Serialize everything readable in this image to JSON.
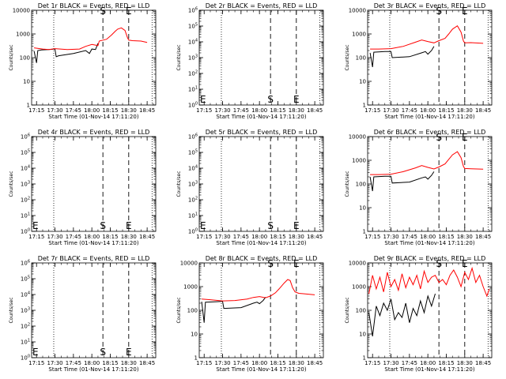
{
  "chart_data": [
    {
      "type": "line",
      "title": "Det 1r BLACK = Events, RED = LLD",
      "xlabel": "Start Time (01-Nov-14 17:11:20)",
      "ylabel": "Counts/sec",
      "yscale": "log",
      "ylim": [
        1,
        10000
      ],
      "xlim": [
        "17:11",
        "18:52"
      ],
      "x_ticks": [
        "17:15",
        "17:30",
        "17:45",
        "18:00",
        "18:15",
        "18:30",
        "18:45"
      ],
      "y_ticks": [
        "1",
        "10",
        "100",
        "1000",
        "10000"
      ],
      "markers": [
        {
          "label": "S",
          "x": "18:09"
        },
        {
          "label": "E",
          "x": "18:30"
        }
      ],
      "series": [
        {
          "color": "#ff0000",
          "x": [
            "17:13",
            "17:20",
            "17:25",
            "17:30",
            "17:40",
            "17:50",
            "17:55",
            "18:00",
            "18:05",
            "18:06",
            "18:09",
            "18:12",
            "18:16",
            "18:19",
            "18:21",
            "18:24",
            "18:27",
            "18:29",
            "18:30",
            "18:33",
            "18:40",
            "18:45"
          ],
          "values": [
            260,
            230,
            220,
            240,
            220,
            230,
            300,
            360,
            320,
            500,
            550,
            600,
            900,
            1300,
            1600,
            1800,
            1400,
            700,
            550,
            520,
            500,
            440
          ]
        },
        {
          "color": "#000000",
          "x": [
            "17:13",
            "17:15",
            "17:16",
            "17:19",
            "17:25",
            "17:30",
            "17:31",
            "17:33",
            "17:45",
            "17:55",
            "17:58",
            "18:00",
            "18:03",
            "18:05"
          ],
          "values": [
            190,
            60,
            200,
            210,
            220,
            230,
            110,
            120,
            150,
            200,
            150,
            230,
            220,
            400
          ]
        }
      ]
    },
    {
      "type": "line",
      "title": "Det 2r BLACK = Events, RED = LLD",
      "xlabel": "Start Time (01-Nov-14 17:11:20)",
      "ylabel": "Counts/sec",
      "yscale": "log",
      "ylim": [
        1,
        1000000
      ],
      "xlim": [
        "17:11",
        "18:52"
      ],
      "x_ticks": [
        "17:15",
        "17:30",
        "17:45",
        "18:00",
        "18:15",
        "18:30",
        "18:45"
      ],
      "y_ticks": [
        "10^0",
        "10^1",
        "10^2",
        "10^3",
        "10^4",
        "10^5",
        "10^6"
      ],
      "markers": [
        {
          "label": "S",
          "x": "18:09"
        },
        {
          "label": "E",
          "x": "18:30"
        }
      ],
      "series": []
    },
    {
      "type": "line",
      "title": "Det 3r BLACK = Events, RED = LLD",
      "xlabel": "Start Time (01-Nov-14 17:11:20)",
      "ylabel": "Counts/sec",
      "yscale": "log",
      "ylim": [
        1,
        10000
      ],
      "xlim": [
        "17:11",
        "18:52"
      ],
      "x_ticks": [
        "17:15",
        "17:30",
        "17:45",
        "18:00",
        "18:15",
        "18:30",
        "18:45"
      ],
      "y_ticks": [
        "1",
        "10",
        "100",
        "1000",
        "10000"
      ],
      "markers": [
        {
          "label": "S",
          "x": "18:09"
        },
        {
          "label": "E",
          "x": "18:30"
        }
      ],
      "series": [
        {
          "color": "#ff0000",
          "x": [
            "17:13",
            "17:20",
            "17:30",
            "17:40",
            "17:50",
            "17:55",
            "18:00",
            "18:05",
            "18:09",
            "18:14",
            "18:17",
            "18:20",
            "18:24",
            "18:27",
            "18:29",
            "18:30",
            "18:35",
            "18:45"
          ],
          "values": [
            230,
            230,
            240,
            300,
            450,
            560,
            480,
            420,
            520,
            650,
            1000,
            1600,
            2200,
            1200,
            500,
            420,
            430,
            400
          ]
        },
        {
          "color": "#000000",
          "x": [
            "17:13",
            "17:15",
            "17:16",
            "17:25",
            "17:30",
            "17:31",
            "17:45",
            "17:55",
            "17:58",
            "18:00",
            "18:03",
            "18:05"
          ],
          "values": [
            160,
            40,
            170,
            180,
            180,
            100,
            110,
            160,
            180,
            140,
            200,
            300
          ]
        }
      ]
    },
    {
      "type": "line",
      "title": "Det 4r BLACK = Events, RED = LLD",
      "xlabel": "Start Time (01-Nov-14 17:11:20)",
      "ylabel": "Counts/sec",
      "yscale": "log",
      "ylim": [
        1,
        1000000
      ],
      "xlim": [
        "17:11",
        "18:52"
      ],
      "x_ticks": [
        "17:15",
        "17:30",
        "17:45",
        "18:00",
        "18:15",
        "18:30",
        "18:45"
      ],
      "y_ticks": [
        "10^0",
        "10^1",
        "10^2",
        "10^3",
        "10^4",
        "10^5",
        "10^6"
      ],
      "markers": [
        {
          "label": "S",
          "x": "18:09"
        },
        {
          "label": "E",
          "x": "18:30"
        }
      ],
      "series": []
    },
    {
      "type": "line",
      "title": "Det 5r BLACK = Events, RED = LLD",
      "xlabel": "Start Time (01-Nov-14 17:11:20)",
      "ylabel": "Counts/sec",
      "yscale": "log",
      "ylim": [
        1,
        1000000
      ],
      "xlim": [
        "17:11",
        "18:52"
      ],
      "x_ticks": [
        "17:15",
        "17:30",
        "17:45",
        "18:00",
        "18:15",
        "18:30",
        "18:45"
      ],
      "y_ticks": [
        "10^0",
        "10^1",
        "10^2",
        "10^3",
        "10^4",
        "10^5",
        "10^6"
      ],
      "markers": [
        {
          "label": "S",
          "x": "18:09"
        },
        {
          "label": "E",
          "x": "18:30"
        }
      ],
      "series": []
    },
    {
      "type": "line",
      "title": "Det 6r BLACK = Events, RED = LLD",
      "xlabel": "Start Time (01-Nov-14 17:11:20)",
      "ylabel": "Counts/sec",
      "yscale": "log",
      "ylim": [
        1,
        10000
      ],
      "xlim": [
        "17:11",
        "18:52"
      ],
      "x_ticks": [
        "17:15",
        "17:30",
        "17:45",
        "18:00",
        "18:15",
        "18:30",
        "18:45"
      ],
      "y_ticks": [
        "1",
        "10",
        "100",
        "1000",
        "10000"
      ],
      "markers": [
        {
          "label": "S",
          "x": "18:09"
        },
        {
          "label": "E",
          "x": "18:30"
        }
      ],
      "series": [
        {
          "color": "#ff0000",
          "x": [
            "17:13",
            "17:20",
            "17:30",
            "17:40",
            "17:50",
            "17:55",
            "18:00",
            "18:05",
            "18:09",
            "18:14",
            "18:17",
            "18:20",
            "18:24",
            "18:27",
            "18:29",
            "18:30",
            "18:35",
            "18:45"
          ],
          "values": [
            250,
            250,
            260,
            330,
            480,
            600,
            500,
            430,
            520,
            700,
            1100,
            1700,
            2300,
            1300,
            550,
            450,
            440,
            420
          ]
        },
        {
          "color": "#000000",
          "x": [
            "17:13",
            "17:15",
            "17:16",
            "17:25",
            "17:30",
            "17:31",
            "17:45",
            "17:55",
            "17:58",
            "18:00",
            "18:03",
            "18:05"
          ],
          "values": [
            200,
            50,
            200,
            210,
            210,
            110,
            120,
            180,
            200,
            160,
            230,
            330
          ]
        }
      ]
    },
    {
      "type": "line",
      "title": "Det 7r BLACK = Events, RED = LLD",
      "xlabel": "Start Time (01-Nov-14 17:11:20)",
      "ylabel": "Counts/sec",
      "yscale": "log",
      "ylim": [
        1,
        1000000
      ],
      "xlim": [
        "17:11",
        "18:52"
      ],
      "x_ticks": [
        "17:15",
        "17:30",
        "17:45",
        "18:00",
        "18:15",
        "18:30",
        "18:45"
      ],
      "y_ticks": [
        "10^0",
        "10^1",
        "10^2",
        "10^3",
        "10^4",
        "10^5",
        "10^6"
      ],
      "markers": [
        {
          "label": "S",
          "x": "18:09"
        },
        {
          "label": "E",
          "x": "18:30"
        }
      ],
      "series": []
    },
    {
      "type": "line",
      "title": "Det 8r BLACK = Events, RED = LLD",
      "xlabel": "Start Time (01-Nov-14 17:11:20)",
      "ylabel": "Counts/sec",
      "yscale": "log",
      "ylim": [
        1,
        10000
      ],
      "xlim": [
        "17:11",
        "18:52"
      ],
      "x_ticks": [
        "17:15",
        "17:30",
        "17:45",
        "18:00",
        "18:15",
        "18:30",
        "18:45"
      ],
      "y_ticks": [
        "1",
        "10",
        "100",
        "1000",
        "10000"
      ],
      "markers": [
        {
          "label": "S",
          "x": "18:09"
        },
        {
          "label": "E",
          "x": "18:30"
        }
      ],
      "series": [
        {
          "color": "#ff0000",
          "x": [
            "17:13",
            "17:20",
            "17:30",
            "17:40",
            "17:50",
            "17:55",
            "18:00",
            "18:05",
            "18:09",
            "18:13",
            "18:16",
            "18:20",
            "18:23",
            "18:25",
            "18:27",
            "18:29",
            "18:32",
            "18:40",
            "18:45"
          ],
          "values": [
            300,
            280,
            250,
            260,
            300,
            350,
            380,
            340,
            400,
            550,
            800,
            1400,
            2000,
            1800,
            900,
            600,
            520,
            480,
            450
          ]
        },
        {
          "color": "#000000",
          "x": [
            "17:13",
            "17:15",
            "17:16",
            "17:25",
            "17:30",
            "17:31",
            "17:45",
            "17:55",
            "17:58",
            "18:00",
            "18:03",
            "18:05"
          ],
          "values": [
            230,
            30,
            220,
            230,
            240,
            120,
            130,
            200,
            220,
            190,
            260,
            360
          ]
        }
      ]
    },
    {
      "type": "line",
      "title": "Det 9r BLACK = Events, RED = LLD",
      "xlabel": "Start Time (01-Nov-14 17:11:20)",
      "ylabel": "Counts/sec",
      "yscale": "log",
      "ylim": [
        1,
        10000
      ],
      "xlim": [
        "17:11",
        "18:52"
      ],
      "x_ticks": [
        "17:15",
        "17:30",
        "17:45",
        "18:00",
        "18:15",
        "18:30",
        "18:45"
      ],
      "y_ticks": [
        "1",
        "10",
        "100",
        "1000",
        "10000"
      ],
      "markers": [
        {
          "label": "S",
          "x": "18:09"
        },
        {
          "label": "E",
          "x": "18:30"
        }
      ],
      "series": [
        {
          "color": "#ff0000",
          "x": [
            "17:12",
            "17:15",
            "17:18",
            "17:21",
            "17:24",
            "17:27",
            "17:30",
            "17:33",
            "17:36",
            "17:39",
            "17:42",
            "17:45",
            "17:48",
            "17:51",
            "17:54",
            "17:57",
            "18:00",
            "18:03",
            "18:06",
            "18:09",
            "18:12",
            "18:15",
            "18:18",
            "18:21",
            "18:24",
            "18:27",
            "18:30",
            "18:33",
            "18:36",
            "18:39",
            "18:42",
            "18:45",
            "18:48",
            "18:50"
          ],
          "values": [
            500,
            3000,
            800,
            2500,
            600,
            4000,
            1000,
            2000,
            700,
            3500,
            900,
            2500,
            1200,
            3000,
            800,
            4500,
            1500,
            2500,
            3000,
            1500,
            2000,
            1200,
            3000,
            5000,
            2500,
            1000,
            4000,
            2000,
            6000,
            1500,
            3000,
            1000,
            400,
            800
          ]
        },
        {
          "color": "#000000",
          "x": [
            "17:12",
            "17:15",
            "17:18",
            "17:21",
            "17:24",
            "17:27",
            "17:30",
            "17:33",
            "17:36",
            "17:39",
            "17:42",
            "17:45",
            "17:48",
            "17:51",
            "17:54",
            "17:57",
            "18:00",
            "18:03",
            "18:06"
          ],
          "values": [
            80,
            8,
            150,
            60,
            200,
            100,
            300,
            40,
            80,
            50,
            200,
            30,
            120,
            60,
            250,
            80,
            400,
            150,
            500
          ]
        }
      ]
    }
  ]
}
